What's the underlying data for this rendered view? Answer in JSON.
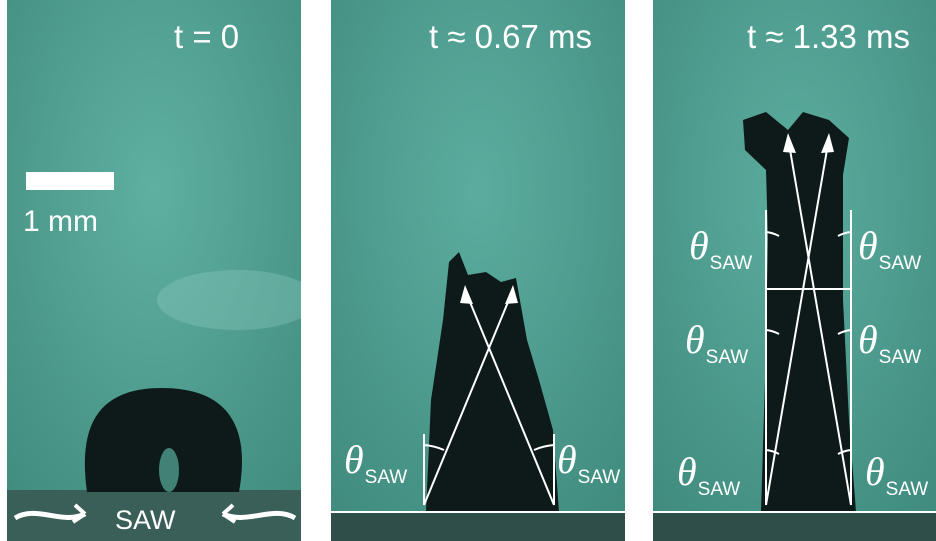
{
  "panels": [
    {
      "time_label": "t = 0"
    },
    {
      "time_label": "t ≈ 0.67 ms"
    },
    {
      "time_label": "t ≈ 1.33 ms"
    }
  ],
  "scale_bar": {
    "label": "1 mm"
  },
  "wave": {
    "label": "SAW"
  },
  "angle": {
    "symbol": "θ",
    "subscript": "SAW"
  },
  "colors": {
    "background": "#4f9c8e",
    "droplet": "#0e1a19",
    "annotation": "#ffffff"
  }
}
